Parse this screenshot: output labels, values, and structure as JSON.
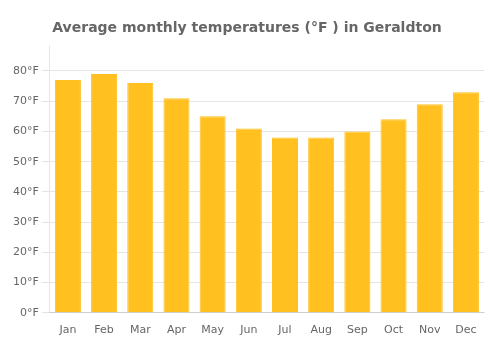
{
  "chart_data": {
    "type": "bar",
    "title": "Average monthly temperatures (°F ) in Geraldton",
    "categories": [
      "Jan",
      "Feb",
      "Mar",
      "Apr",
      "May",
      "Jun",
      "Jul",
      "Aug",
      "Sep",
      "Oct",
      "Nov",
      "Dec"
    ],
    "values": [
      77,
      79,
      76,
      71,
      65,
      61,
      58,
      58,
      60,
      64,
      69,
      73
    ],
    "color": "#FFC020",
    "ylim": [
      0,
      88
    ],
    "yticks": [
      {
        "value": 0,
        "label": "0°F"
      },
      {
        "value": 10,
        "label": "10°F"
      },
      {
        "value": 20,
        "label": "20°F"
      },
      {
        "value": 30,
        "label": "30°F"
      },
      {
        "value": 40,
        "label": "40°F"
      },
      {
        "value": 50,
        "label": "50°F"
      },
      {
        "value": 60,
        "label": "60°F"
      },
      {
        "value": 70,
        "label": "70°F"
      },
      {
        "value": 80,
        "label": "80°F"
      }
    ],
    "grid": true
  }
}
